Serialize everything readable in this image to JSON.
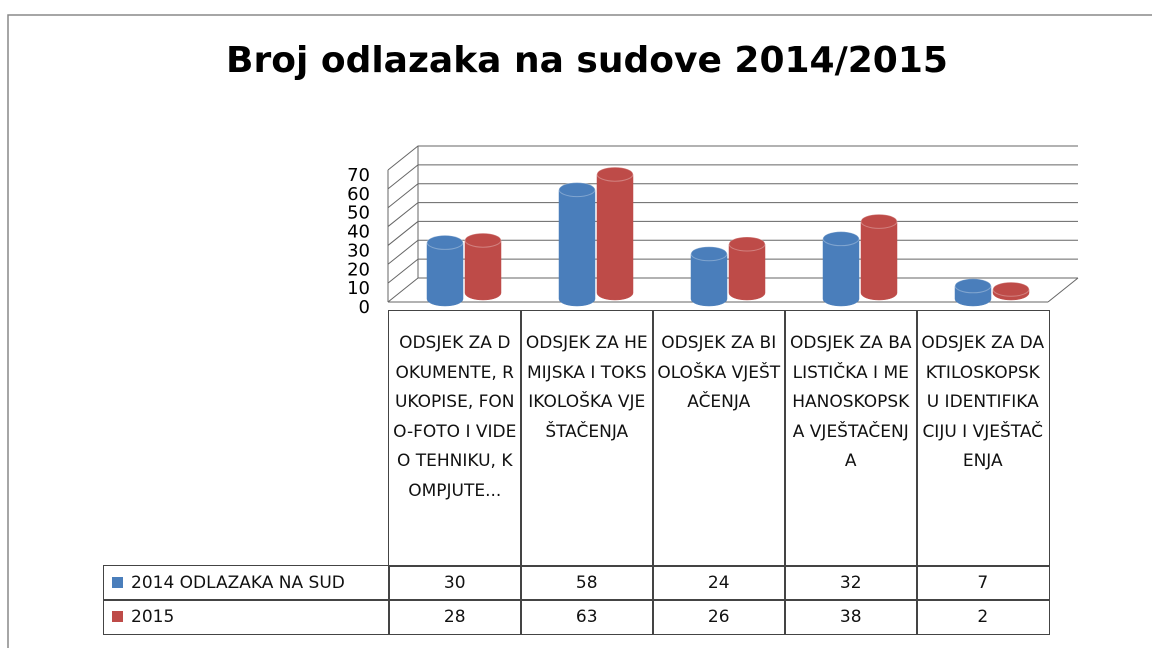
{
  "chart_data": {
    "type": "bar",
    "title": "Broj odlazaka na sudove 2014/2015",
    "categories": [
      "ODSJEK ZA DOKUMENTE, RUKOPISE, FONO-FOTO I VIDEO TEHNIKU, KOMPJUTE...",
      "ODSJEK ZA HEMIJSKA I TOKSIKOLOŠKA VJEŠTAČENJA",
      "ODSJEK ZA BIOLOŠKA VJEŠTAČENJA",
      "ODSJEK ZA BALISTIČKA I MEHANOSKOPSKA VJEŠTAČENJA",
      "ODSJEK ZA DAKTILOSKOPSKU IDENTIFIKACIJU I VJEŠTAČENJA"
    ],
    "series": [
      {
        "name": "2014 ODLAZAKA NA SUD",
        "color": "#4a7ebb",
        "values": [
          30,
          58,
          24,
          32,
          7
        ]
      },
      {
        "name": "2015",
        "color": "#be4b48",
        "values": [
          28,
          63,
          26,
          38,
          2
        ]
      }
    ],
    "ylim": [
      0,
      70
    ],
    "yticks": [
      0,
      10,
      20,
      30,
      40,
      50,
      60,
      70
    ],
    "grid": true
  }
}
